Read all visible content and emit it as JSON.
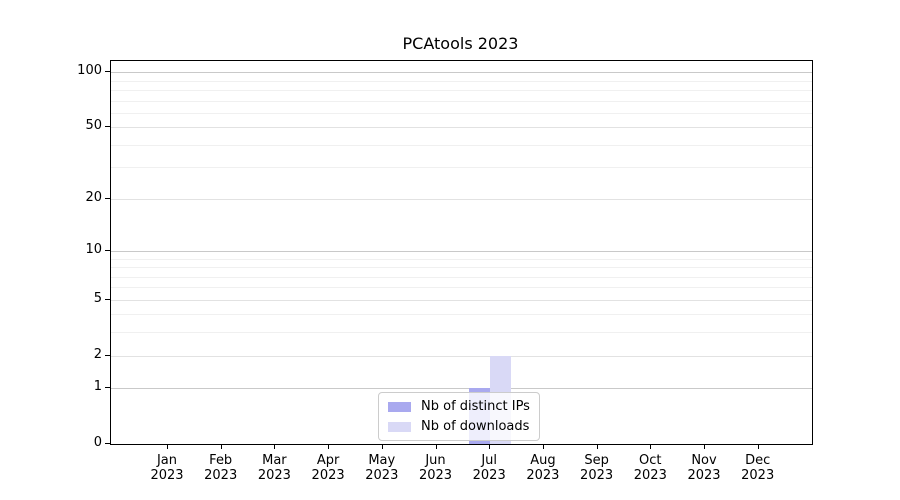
{
  "figure": {
    "title": "PCAtools 2023"
  },
  "chart_data": {
    "type": "bar",
    "title": "PCAtools 2023",
    "categories": [
      "Jan 2023",
      "Feb 2023",
      "Mar 2023",
      "Apr 2023",
      "May 2023",
      "Jun 2023",
      "Jul 2023",
      "Aug 2023",
      "Sep 2023",
      "Oct 2023",
      "Nov 2023",
      "Dec 2023"
    ],
    "series": [
      {
        "name": "Nb of distinct IPs",
        "color": "#a9a9ef",
        "values": [
          0,
          0,
          0,
          0,
          0,
          0,
          1,
          0,
          0,
          0,
          0,
          0
        ]
      },
      {
        "name": "Nb of downloads",
        "color": "#d9d9f6",
        "values": [
          0,
          0,
          0,
          0,
          0,
          0,
          2,
          0,
          0,
          0,
          0,
          0
        ]
      }
    ],
    "xlabel": "",
    "ylabel": "",
    "yscale": "log1p",
    "ylim": [
      0,
      115
    ],
    "y_ticks": [
      0,
      1,
      2,
      5,
      10,
      20,
      50,
      100
    ],
    "y_decade_ticks": [
      1,
      10,
      100
    ],
    "y_minor_gridlines": [
      3,
      4,
      6,
      7,
      8,
      9,
      30,
      40,
      60,
      70,
      80,
      90
    ],
    "grid": true,
    "legend_position": "lower center"
  }
}
